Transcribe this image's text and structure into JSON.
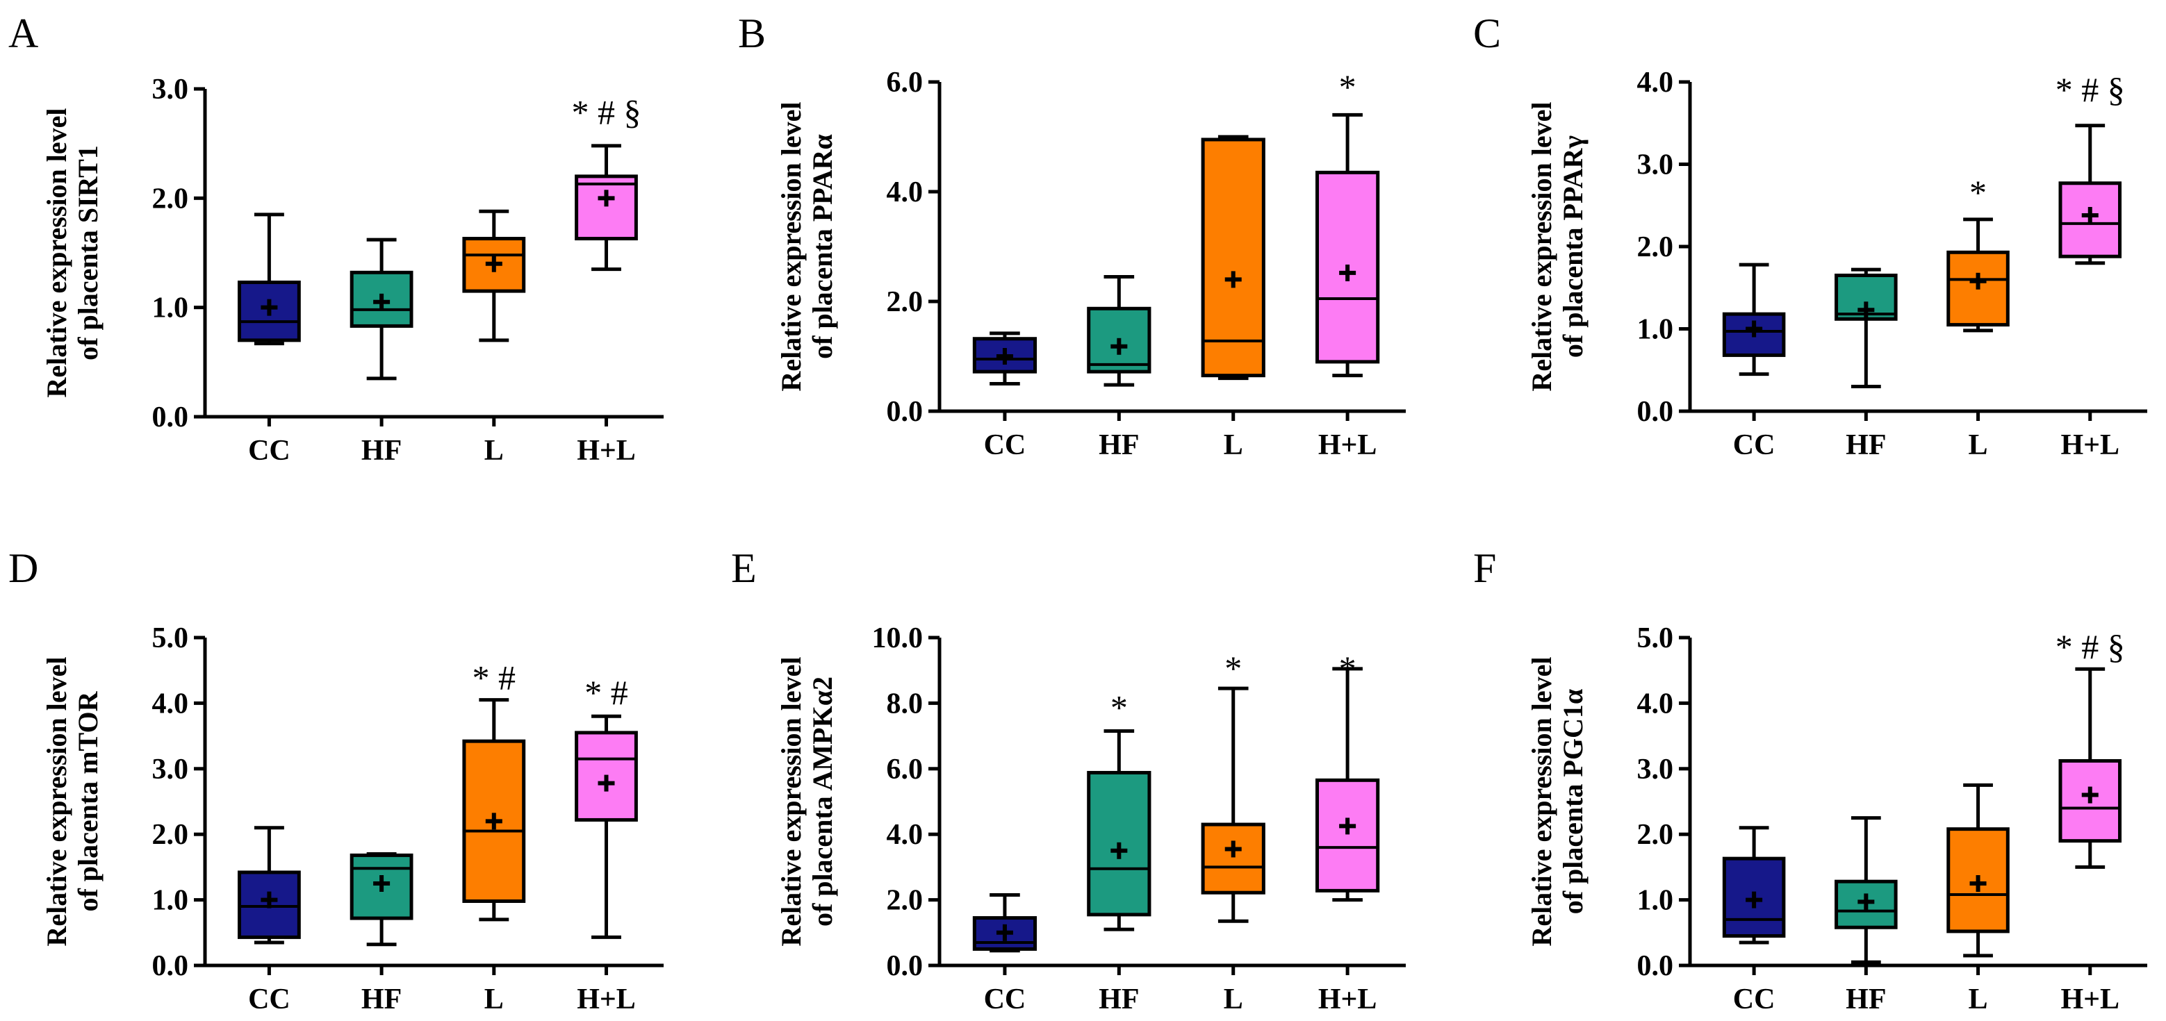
{
  "figure": {
    "colors": {
      "CC": "#16188a",
      "HF": "#1c9a80",
      "L": "#fd7e00",
      "H+L": "#fd7cf4"
    },
    "panels_order": [
      "A",
      "B",
      "C",
      "D",
      "E",
      "F"
    ]
  },
  "chart_data": [
    {
      "panel": "A",
      "type": "box",
      "ylabel_lines": [
        "Relative expression level",
        "of placenta SIRT1"
      ],
      "ylim": [
        0,
        3
      ],
      "yticks": [
        0,
        1,
        2,
        3
      ],
      "ytick_labels": [
        "0.0",
        "1.0",
        "2.0",
        "3.0"
      ],
      "categories": [
        "CC",
        "HF",
        "L",
        "H+L"
      ],
      "series": [
        {
          "name": "CC",
          "whisker_low": 0.67,
          "q1": 0.7,
          "median": 0.87,
          "q3": 1.23,
          "whisker_high": 1.85,
          "mean": 1.0
        },
        {
          "name": "HF",
          "whisker_low": 0.35,
          "q1": 0.83,
          "median": 0.98,
          "q3": 1.32,
          "whisker_high": 1.62,
          "mean": 1.05
        },
        {
          "name": "L",
          "whisker_low": 0.7,
          "q1": 1.15,
          "median": 1.48,
          "q3": 1.63,
          "whisker_high": 1.88,
          "mean": 1.4
        },
        {
          "name": "H+L",
          "whisker_low": 1.35,
          "q1": 1.63,
          "median": 2.13,
          "q3": 2.2,
          "whisker_high": 2.48,
          "mean": 2.0
        }
      ],
      "annotations": [
        {
          "category": "H+L",
          "text": "* # §",
          "y": 2.78
        }
      ]
    },
    {
      "panel": "B",
      "type": "box",
      "ylabel_lines": [
        "Relative expression level",
        "of placenta PPARα"
      ],
      "ylim": [
        0,
        6
      ],
      "yticks": [
        0,
        2,
        4,
        6
      ],
      "ytick_labels": [
        "0.0",
        "2.0",
        "4.0",
        "6.0"
      ],
      "categories": [
        "CC",
        "HF",
        "L",
        "H+L"
      ],
      "series": [
        {
          "name": "CC",
          "whisker_low": 0.5,
          "q1": 0.72,
          "median": 0.95,
          "q3": 1.32,
          "whisker_high": 1.42,
          "mean": 1.0
        },
        {
          "name": "HF",
          "whisker_low": 0.48,
          "q1": 0.72,
          "median": 0.85,
          "q3": 1.87,
          "whisker_high": 2.45,
          "mean": 1.18
        },
        {
          "name": "L",
          "whisker_low": 0.6,
          "q1": 0.65,
          "median": 1.28,
          "q3": 4.95,
          "whisker_high": 5.0,
          "mean": 2.4
        },
        {
          "name": "H+L",
          "whisker_low": 0.65,
          "q1": 0.9,
          "median": 2.05,
          "q3": 4.35,
          "whisker_high": 5.4,
          "mean": 2.52
        }
      ],
      "annotations": [
        {
          "category": "H+L",
          "text": "*",
          "y": 5.9
        }
      ]
    },
    {
      "panel": "C",
      "type": "box",
      "ylabel_lines": [
        "Relative expression level",
        "of placenta PPARγ"
      ],
      "ylim": [
        0,
        4
      ],
      "yticks": [
        0,
        1,
        2,
        3,
        4
      ],
      "ytick_labels": [
        "0.0",
        "1.0",
        "2.0",
        "3.0",
        "4.0"
      ],
      "categories": [
        "CC",
        "HF",
        "L",
        "H+L"
      ],
      "series": [
        {
          "name": "CC",
          "whisker_low": 0.45,
          "q1": 0.68,
          "median": 0.97,
          "q3": 1.18,
          "whisker_high": 1.78,
          "mean": 1.0
        },
        {
          "name": "HF",
          "whisker_low": 0.3,
          "q1": 1.12,
          "median": 1.18,
          "q3": 1.65,
          "whisker_high": 1.72,
          "mean": 1.23
        },
        {
          "name": "L",
          "whisker_low": 0.98,
          "q1": 1.05,
          "median": 1.6,
          "q3": 1.93,
          "whisker_high": 2.33,
          "mean": 1.58
        },
        {
          "name": "H+L",
          "whisker_low": 1.8,
          "q1": 1.88,
          "median": 2.28,
          "q3": 2.77,
          "whisker_high": 3.47,
          "mean": 2.38
        }
      ],
      "annotations": [
        {
          "category": "L",
          "text": "*",
          "y": 2.65
        },
        {
          "category": "H+L",
          "text": "* # §",
          "y": 3.9
        }
      ]
    },
    {
      "panel": "D",
      "type": "box",
      "ylabel_lines": [
        "Relative expression level",
        "of placenta mTOR"
      ],
      "ylim": [
        0,
        5
      ],
      "yticks": [
        0,
        1,
        2,
        3,
        4,
        5
      ],
      "ytick_labels": [
        "0.0",
        "1.0",
        "2.0",
        "3.0",
        "4.0",
        "5.0"
      ],
      "categories": [
        "CC",
        "HF",
        "L",
        "H+L"
      ],
      "series": [
        {
          "name": "CC",
          "whisker_low": 0.35,
          "q1": 0.43,
          "median": 0.9,
          "q3": 1.42,
          "whisker_high": 2.1,
          "mean": 1.0
        },
        {
          "name": "HF",
          "whisker_low": 0.32,
          "q1": 0.72,
          "median": 1.48,
          "q3": 1.68,
          "whisker_high": 1.7,
          "mean": 1.25
        },
        {
          "name": "L",
          "whisker_low": 0.7,
          "q1": 0.98,
          "median": 2.05,
          "q3": 3.42,
          "whisker_high": 4.05,
          "mean": 2.2
        },
        {
          "name": "H+L",
          "whisker_low": 0.43,
          "q1": 2.22,
          "median": 3.15,
          "q3": 3.55,
          "whisker_high": 3.8,
          "mean": 2.78
        }
      ],
      "annotations": [
        {
          "category": "L",
          "text": "* #",
          "y": 4.38
        },
        {
          "category": "H+L",
          "text": "* #",
          "y": 4.15
        }
      ]
    },
    {
      "panel": "E",
      "type": "box",
      "ylabel_lines": [
        "Relative expression level",
        "of placenta AMPKα2"
      ],
      "ylim": [
        0,
        10
      ],
      "yticks": [
        0,
        2,
        4,
        6,
        8,
        10
      ],
      "ytick_labels": [
        "0.0",
        "2.0",
        "4.0",
        "6.0",
        "8.0",
        "10.0"
      ],
      "categories": [
        "CC",
        "HF",
        "L",
        "H+L"
      ],
      "series": [
        {
          "name": "CC",
          "whisker_low": 0.45,
          "q1": 0.5,
          "median": 0.7,
          "q3": 1.45,
          "whisker_high": 2.15,
          "mean": 1.0
        },
        {
          "name": "HF",
          "whisker_low": 1.1,
          "q1": 1.55,
          "median": 2.95,
          "q3": 5.88,
          "whisker_high": 7.15,
          "mean": 3.5
        },
        {
          "name": "L",
          "whisker_low": 1.35,
          "q1": 2.22,
          "median": 3.0,
          "q3": 4.3,
          "whisker_high": 8.45,
          "mean": 3.55
        },
        {
          "name": "H+L",
          "whisker_low": 2.0,
          "q1": 2.28,
          "median": 3.6,
          "q3": 5.65,
          "whisker_high": 9.05,
          "mean": 4.25
        }
      ],
      "annotations": [
        {
          "category": "HF",
          "text": "*",
          "y": 7.85
        },
        {
          "category": "L",
          "text": "*",
          "y": 9.05
        },
        {
          "category": "H+L",
          "text": "*",
          "y": 9.05
        }
      ]
    },
    {
      "panel": "F",
      "type": "box",
      "ylabel_lines": [
        "Relative expression level",
        "of placenta PGC1α"
      ],
      "ylim": [
        0,
        5
      ],
      "yticks": [
        0,
        1,
        2,
        3,
        4,
        5
      ],
      "ytick_labels": [
        "0.0",
        "1.0",
        "2.0",
        "3.0",
        "4.0",
        "5.0"
      ],
      "categories": [
        "CC",
        "HF",
        "L",
        "H+L"
      ],
      "series": [
        {
          "name": "CC",
          "whisker_low": 0.35,
          "q1": 0.45,
          "median": 0.7,
          "q3": 1.63,
          "whisker_high": 2.1,
          "mean": 1.0
        },
        {
          "name": "HF",
          "whisker_low": 0.05,
          "q1": 0.58,
          "median": 0.83,
          "q3": 1.28,
          "whisker_high": 2.25,
          "mean": 0.97
        },
        {
          "name": "L",
          "whisker_low": 0.15,
          "q1": 0.52,
          "median": 1.08,
          "q3": 2.08,
          "whisker_high": 2.75,
          "mean": 1.25
        },
        {
          "name": "H+L",
          "whisker_low": 1.5,
          "q1": 1.9,
          "median": 2.4,
          "q3": 3.12,
          "whisker_high": 4.52,
          "mean": 2.6
        }
      ],
      "annotations": [
        {
          "category": "H+L",
          "text": "* # §",
          "y": 4.85
        }
      ]
    }
  ]
}
